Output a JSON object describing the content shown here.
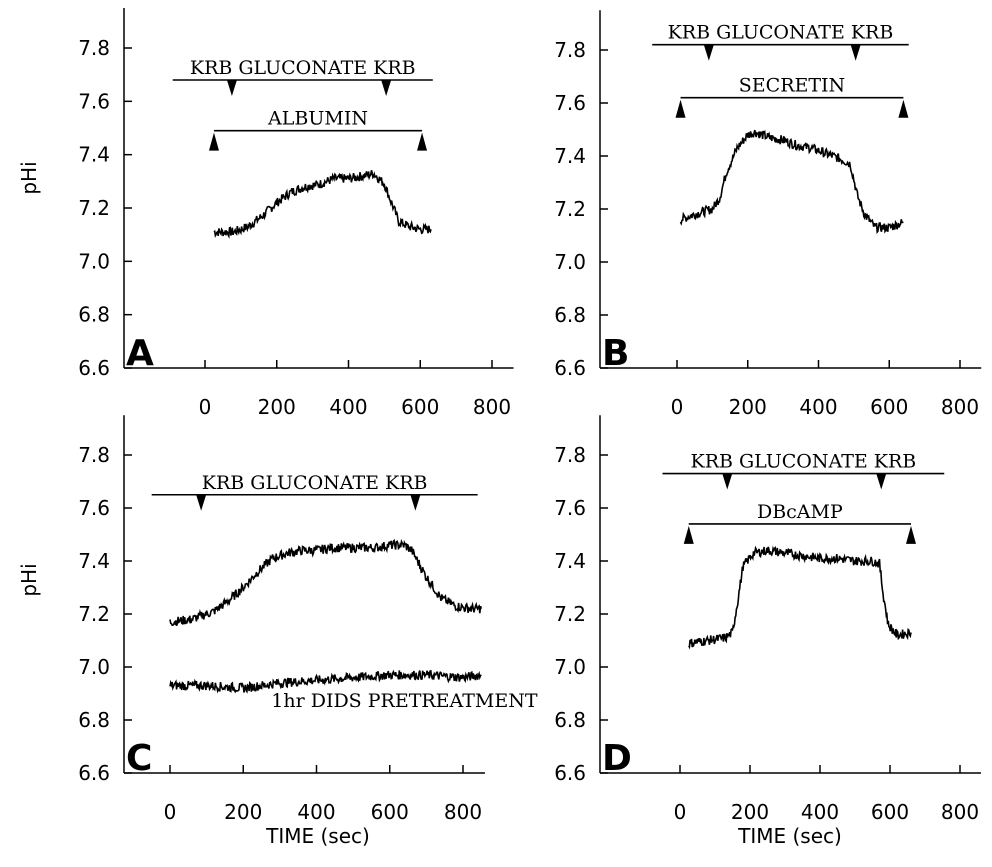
{
  "chart_data": [
    {
      "type": "line",
      "panel_label": "A",
      "ylabel": "pHi",
      "xlabel": "",
      "xlim": [
        -190,
        860
      ],
      "ylim": [
        6.6,
        7.95
      ],
      "xticks": [
        0,
        200,
        400,
        600,
        800
      ],
      "yticks": [
        "7.8",
        "7.6",
        "7.4",
        "7.2",
        "7.0",
        "6.8",
        "6.6"
      ],
      "annotations": [
        {
          "label": "KRB GLUCONATE KRB",
          "from": -90,
          "to": 635,
          "y": 7.68,
          "markers": [
            75,
            505
          ],
          "marker_dir": "down"
        },
        {
          "label": "ALBUMIN",
          "from": 25,
          "to": 605,
          "y": 7.49,
          "markers": [
            25,
            605
          ],
          "marker_dir": "up"
        }
      ],
      "series": [
        {
          "x": [
            25,
            80,
            120,
            160,
            200,
            240,
            280,
            320,
            360,
            400,
            440,
            470,
            500,
            520,
            540,
            570,
            600,
            630
          ],
          "y": [
            7.11,
            7.11,
            7.13,
            7.17,
            7.22,
            7.26,
            7.28,
            7.29,
            7.31,
            7.31,
            7.32,
            7.33,
            7.29,
            7.22,
            7.15,
            7.13,
            7.12,
            7.12
          ]
        }
      ]
    },
    {
      "type": "line",
      "panel_label": "B",
      "ylabel": "",
      "xlabel": "",
      "xlim": [
        -190,
        860
      ],
      "ylim": [
        6.6,
        7.95
      ],
      "xticks": [
        0,
        200,
        400,
        600,
        800
      ],
      "yticks": [
        "7.8",
        "7.6",
        "7.4",
        "7.2",
        "7.0",
        "6.8",
        "6.6"
      ],
      "annotations": [
        {
          "label": "KRB GLUCONATE KRB",
          "from": -70,
          "to": 655,
          "y": 7.82,
          "markers": [
            90,
            505
          ],
          "marker_dir": "down"
        },
        {
          "label": "SECRETIN",
          "from": 10,
          "to": 640,
          "y": 7.62,
          "markers": [
            10,
            640
          ],
          "marker_dir": "up"
        }
      ],
      "series": [
        {
          "x": [
            10,
            50,
            100,
            120,
            140,
            170,
            200,
            220,
            260,
            300,
            340,
            380,
            420,
            460,
            490,
            510,
            530,
            560,
            600,
            640
          ],
          "y": [
            7.16,
            7.18,
            7.2,
            7.24,
            7.34,
            7.43,
            7.48,
            7.49,
            7.47,
            7.46,
            7.44,
            7.43,
            7.41,
            7.39,
            7.37,
            7.25,
            7.18,
            7.13,
            7.13,
            7.15
          ]
        }
      ]
    },
    {
      "type": "line",
      "panel_label": "C",
      "ylabel": "pHi",
      "xlabel": "TIME (sec)",
      "xlim": [
        -190,
        860
      ],
      "ylim": [
        6.6,
        7.95
      ],
      "xticks": [
        0,
        200,
        400,
        600,
        800
      ],
      "yticks": [
        "7.8",
        "7.6",
        "7.4",
        "7.2",
        "7.0",
        "6.8",
        "6.6"
      ],
      "annotations": [
        {
          "label": "KRB GLUCONATE KRB",
          "from": -50,
          "to": 840,
          "y": 7.65,
          "markers": [
            85,
            670
          ],
          "marker_dir": "down"
        },
        {
          "label": "1hr DIDS PRETREATMENT",
          "text_only": true,
          "at_x": 640,
          "y": 6.85
        }
      ],
      "series": [
        {
          "x": [
            0,
            60,
            120,
            160,
            200,
            240,
            280,
            320,
            360,
            400,
            440,
            480,
            520,
            560,
            600,
            640,
            660,
            700,
            740,
            780,
            820,
            850
          ],
          "y": [
            7.17,
            7.18,
            7.21,
            7.25,
            7.3,
            7.36,
            7.41,
            7.43,
            7.44,
            7.44,
            7.45,
            7.45,
            7.45,
            7.45,
            7.46,
            7.46,
            7.44,
            7.34,
            7.26,
            7.23,
            7.22,
            7.22
          ]
        },
        {
          "x": [
            0,
            100,
            200,
            300,
            400,
            500,
            600,
            700,
            800,
            850
          ],
          "y": [
            6.93,
            6.93,
            6.92,
            6.94,
            6.95,
            6.96,
            6.97,
            6.97,
            6.96,
            6.97
          ]
        }
      ]
    },
    {
      "type": "line",
      "panel_label": "D",
      "ylabel": "",
      "xlabel": "TIME (sec)",
      "xlim": [
        -190,
        860
      ],
      "ylim": [
        6.6,
        7.95
      ],
      "xticks": [
        0,
        200,
        400,
        600,
        800
      ],
      "yticks": [
        "7.8",
        "7.6",
        "7.4",
        "7.2",
        "7.0",
        "6.8",
        "6.6"
      ],
      "annotations": [
        {
          "label": "KRB GLUCONATE KRB",
          "from": -50,
          "to": 755,
          "y": 7.73,
          "markers": [
            135,
            575
          ],
          "marker_dir": "down"
        },
        {
          "label": "DBcAMP",
          "from": 25,
          "to": 660,
          "y": 7.54,
          "markers": [
            25,
            660
          ],
          "marker_dir": "up"
        }
      ],
      "series": [
        {
          "x": [
            25,
            80,
            130,
            150,
            165,
            180,
            210,
            250,
            300,
            350,
            400,
            450,
            500,
            550,
            570,
            580,
            595,
            620,
            660
          ],
          "y": [
            7.09,
            7.1,
            7.11,
            7.13,
            7.25,
            7.38,
            7.43,
            7.44,
            7.43,
            7.42,
            7.41,
            7.41,
            7.4,
            7.4,
            7.39,
            7.28,
            7.16,
            7.12,
            7.13
          ]
        }
      ]
    }
  ]
}
